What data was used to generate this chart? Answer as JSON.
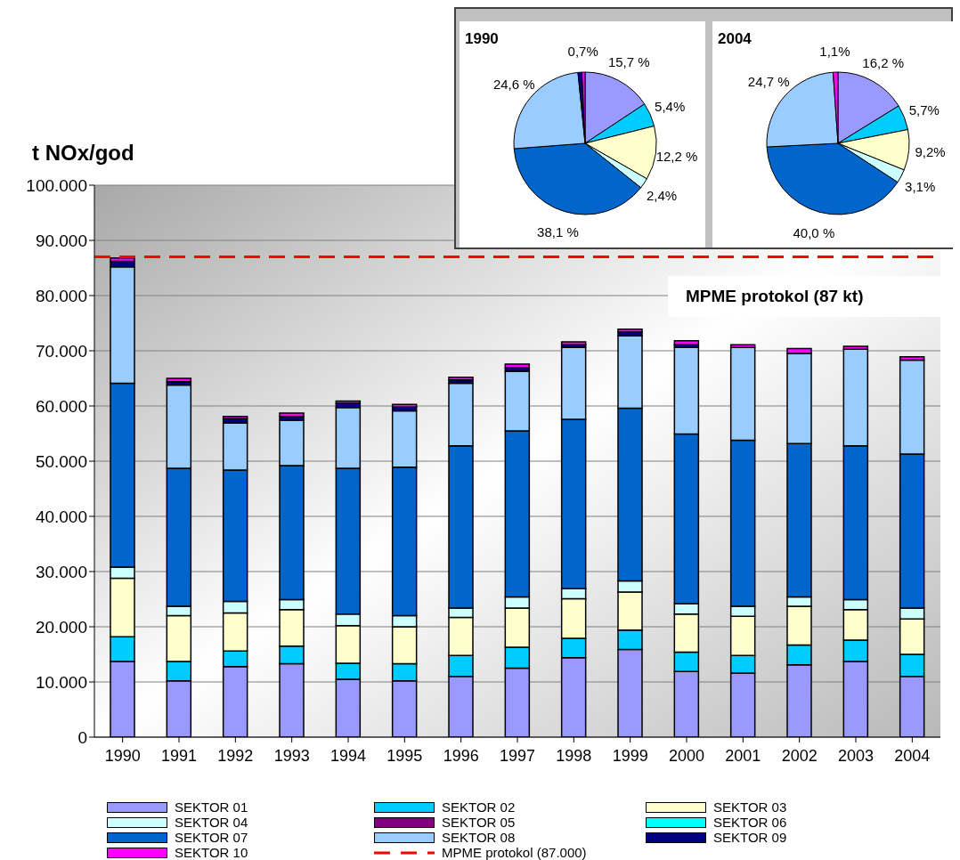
{
  "chart_data": [
    {
      "type": "bar",
      "ylabel": "t NOx/god",
      "stacked": true,
      "grid": "y",
      "legend": "bottom",
      "categories": [
        "1990",
        "1991",
        "1992",
        "1993",
        "1994",
        "1995",
        "1996",
        "1997",
        "1998",
        "1999",
        "2000",
        "2001",
        "2002",
        "2003",
        "2004"
      ],
      "series": [
        {
          "name": "SEKTOR 01",
          "color": "#9999ff",
          "values": [
            13700,
            10200,
            12800,
            13300,
            10500,
            10200,
            11000,
            12500,
            14400,
            15900,
            11900,
            11600,
            13100,
            13700,
            11000
          ]
        },
        {
          "name": "SEKTOR 02",
          "color": "#00ccff",
          "values": [
            4500,
            3500,
            2800,
            3200,
            2900,
            3100,
            3800,
            3800,
            3500,
            3500,
            3500,
            3200,
            3600,
            3900,
            4000
          ]
        },
        {
          "name": "SEKTOR 03",
          "color": "#ffffcc",
          "values": [
            10600,
            8300,
            6900,
            6600,
            6800,
            6700,
            6900,
            7100,
            7200,
            6900,
            6900,
            7100,
            7000,
            5500,
            6400
          ]
        },
        {
          "name": "SEKTOR 04",
          "color": "#ccffff",
          "values": [
            2000,
            1700,
            2100,
            1800,
            2100,
            2000,
            1700,
            2000,
            1800,
            2000,
            1900,
            1800,
            1700,
            1800,
            2000
          ]
        },
        {
          "name": "SEKTOR 05",
          "color": "#800080",
          "values": [
            0,
            0,
            0,
            0,
            0,
            0,
            0,
            0,
            0,
            0,
            0,
            0,
            0,
            0,
            0
          ]
        },
        {
          "name": "SEKTOR 06",
          "color": "#00ffff",
          "values": [
            0,
            0,
            0,
            0,
            0,
            0,
            0,
            0,
            0,
            0,
            0,
            0,
            0,
            0,
            0
          ]
        },
        {
          "name": "SEKTOR 07",
          "color": "#0066cc",
          "values": [
            33300,
            25000,
            23800,
            24300,
            26400,
            26900,
            29400,
            30100,
            30700,
            31300,
            30700,
            30100,
            27800,
            27900,
            27900
          ]
        },
        {
          "name": "SEKTOR 08",
          "color": "#99ccff",
          "values": [
            21100,
            15100,
            8500,
            8200,
            11000,
            10200,
            11300,
            10800,
            13000,
            13100,
            15700,
            16800,
            16300,
            17500,
            17000
          ]
        },
        {
          "name": "SEKTOR 09",
          "color": "#000080",
          "values": [
            1000,
            600,
            800,
            700,
            800,
            700,
            600,
            600,
            500,
            700,
            500,
            null,
            null,
            null,
            null
          ]
        },
        {
          "name": "SEKTOR 10",
          "color": "#ff00ff",
          "values": [
            600,
            600,
            400,
            600,
            400,
            500,
            500,
            700,
            500,
            500,
            700,
            500,
            900,
            500,
            600
          ]
        }
      ],
      "ylim": [
        0,
        100000
      ],
      "yticks": [
        0,
        {
          "value": 10000,
          "label": "10.000"
        },
        {
          "value": 20000,
          "label": "20.000"
        },
        {
          "value": 30000,
          "label": "30.000"
        },
        {
          "value": 40000,
          "label": "40.000"
        },
        {
          "value": 50000,
          "label": "50.000"
        },
        {
          "value": 60000,
          "label": "60.000"
        },
        {
          "value": 70000,
          "label": "70.000"
        },
        {
          "value": 80000,
          "label": "80.000"
        },
        {
          "value": 90000,
          "label": "90.000"
        },
        {
          "value": 100000,
          "label": "100.000"
        }
      ],
      "ref_lines": [
        {
          "axis": "y",
          "value": 87000,
          "label": "MPME protokol (87.000)",
          "color": "#ff0000",
          "line_style": "dashed"
        }
      ],
      "annotations": [
        "MPME protokol (87 kt)"
      ]
    },
    {
      "type": "pie",
      "title": "1990",
      "categories": [
        null,
        null,
        null,
        null,
        null,
        null,
        null,
        null
      ],
      "values": [
        15.7,
        5.4,
        12.2,
        2.4,
        38.1,
        24.6,
        0.9,
        0.7
      ],
      "colors": [
        "#9999ff",
        "#00ccff",
        "#ffffcc",
        "#ccffff",
        "#0066cc",
        "#99ccff",
        "#000080",
        "#ff00ff"
      ],
      "value_labels": [
        "15,7 %",
        "5,4%",
        "12,2 %",
        "2,4%",
        "38,1 %",
        "24,6 %",
        null,
        "0,7%"
      ]
    },
    {
      "type": "pie",
      "title": "2004",
      "categories": [
        null,
        null,
        null,
        null,
        null,
        null,
        null
      ],
      "values": [
        16.2,
        5.7,
        9.2,
        3.1,
        40.0,
        24.7,
        1.1
      ],
      "colors": [
        "#9999ff",
        "#00ccff",
        "#ffffcc",
        "#ccffff",
        "#0066cc",
        "#99ccff",
        "#ff00ff"
      ],
      "value_labels": [
        "16,2 %",
        "5,7%",
        "9,2%",
        "3,1%",
        "40,0 %",
        "24,7 %",
        "1,1%"
      ]
    }
  ]
}
